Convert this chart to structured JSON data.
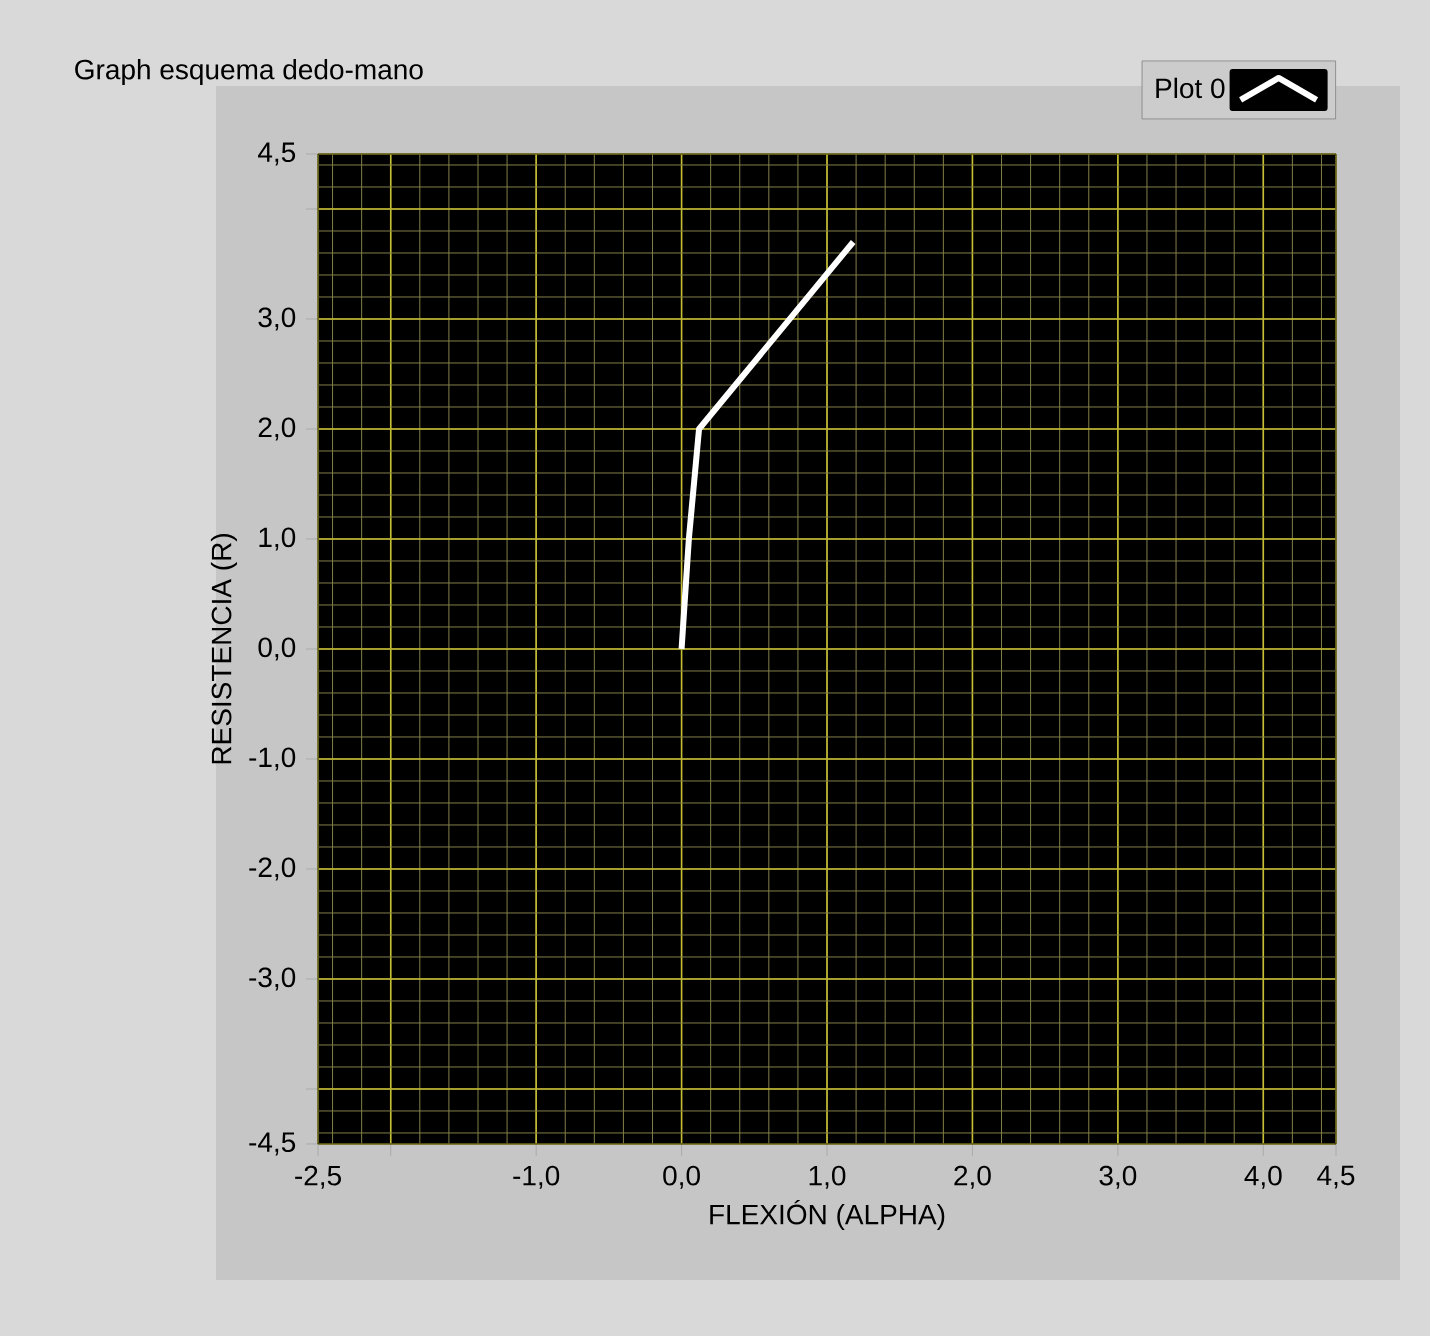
{
  "chart_data": {
    "type": "line",
    "title": "Graph esquema dedo-mano",
    "xlabel": "FLEXIÓN (ALPHA)",
    "ylabel": "RESISTENCIA (R)",
    "x": [
      0,
      0.05,
      0.12,
      1.18
    ],
    "series": [
      {
        "name": "Plot 0",
        "color": "#ffffff",
        "values": [
          0,
          1.0,
          2.0,
          3.7
        ]
      }
    ],
    "xlim": [
      -2.5,
      4.5
    ],
    "xticks": [
      {
        "value": -2.5,
        "label": "-2,5"
      },
      {
        "value": -2.0,
        "label": null
      },
      {
        "value": -1.0,
        "label": "-1,0"
      },
      {
        "value": 0.0,
        "label": "0,0"
      },
      {
        "value": 1.0,
        "label": "1,0"
      },
      {
        "value": 2.0,
        "label": "2,0"
      },
      {
        "value": 3.0,
        "label": "3,0"
      },
      {
        "value": 4.0,
        "label": "4,0"
      },
      {
        "value": 4.5,
        "label": "4,5"
      }
    ],
    "ylim": [
      -4.5,
      4.5
    ],
    "yticks": [
      {
        "value": -4.5,
        "label": "-4,5"
      },
      {
        "value": -4.0,
        "label": null
      },
      {
        "value": -3.0,
        "label": "-3,0"
      },
      {
        "value": -2.0,
        "label": "-2,0"
      },
      {
        "value": -1.0,
        "label": "-1,0"
      },
      {
        "value": 0.0,
        "label": "0,0"
      },
      {
        "value": 1.0,
        "label": "1,0"
      },
      {
        "value": 2.0,
        "label": "2,0"
      },
      {
        "value": 3.0,
        "label": "3,0"
      },
      {
        "value": 4.0,
        "label": null
      },
      {
        "value": 4.5,
        "label": "4,5"
      }
    ],
    "grid": true,
    "legend": "top right",
    "marker": "none",
    "line_style": "solid"
  }
}
